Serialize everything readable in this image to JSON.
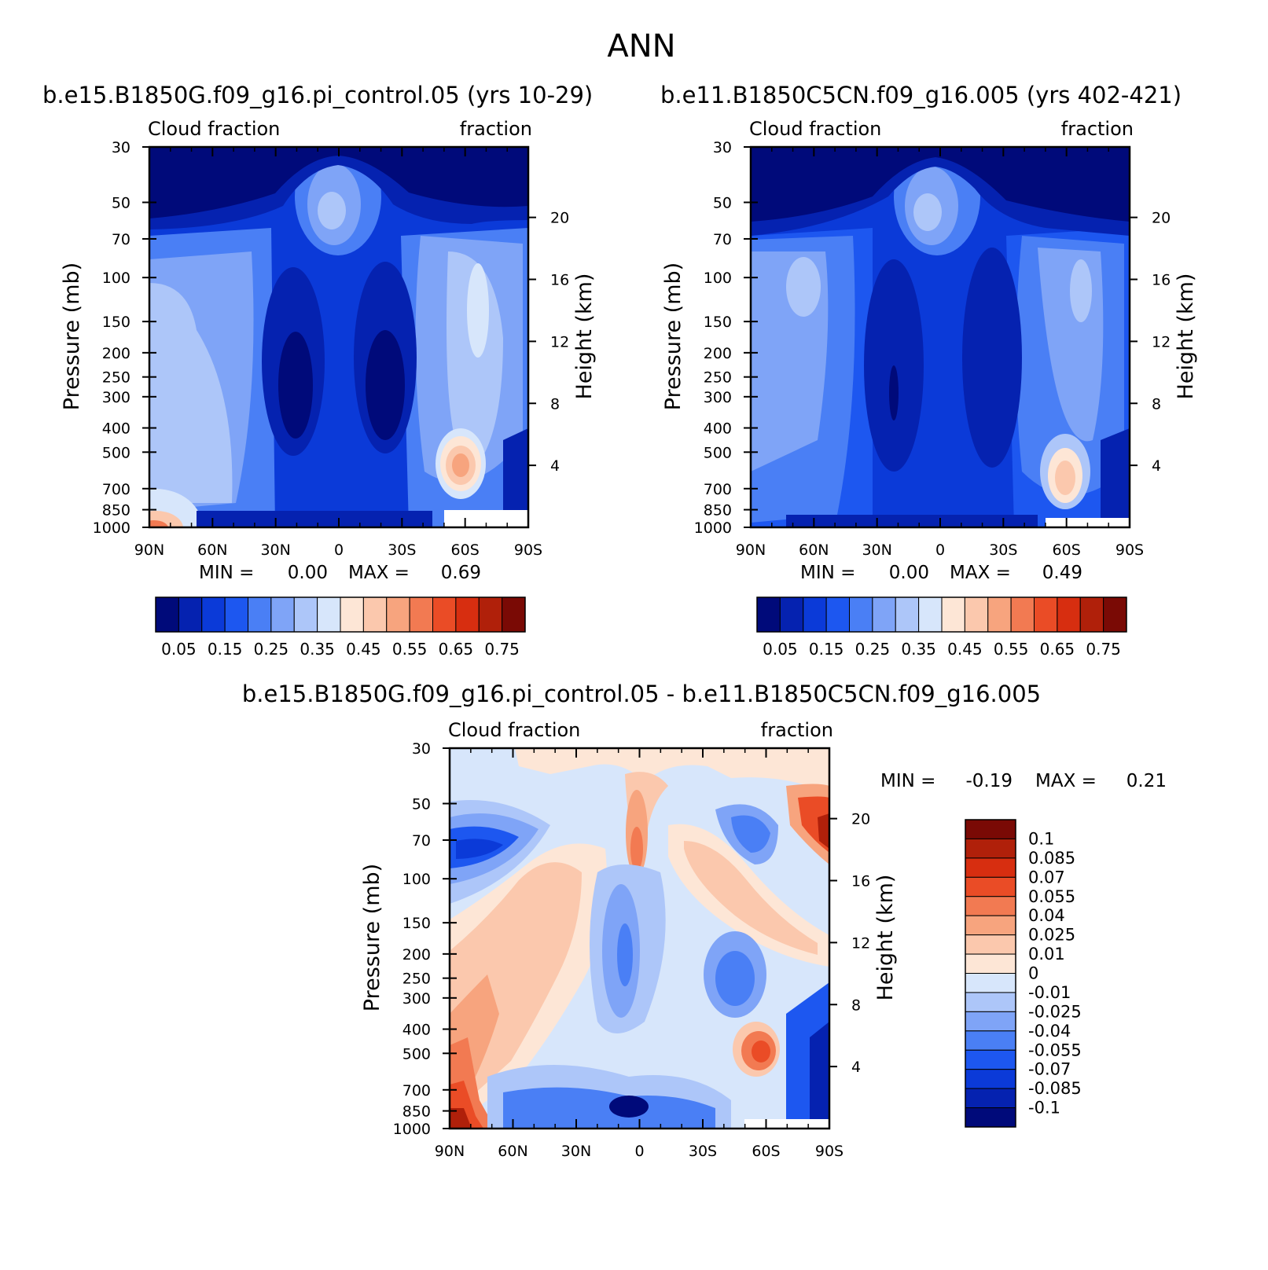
{
  "figure": {
    "title": "ANN"
  },
  "chart_data": [
    {
      "type": "heatmap",
      "title": "b.e15.B1850G.f09_g16.pi_control.05 (yrs 10-29)",
      "subtitle_left": "Cloud fraction",
      "subtitle_right": "fraction",
      "ylabel": "Pressure (mb)",
      "ylabel2": "Height (km)",
      "xticks": [
        "90N",
        "60N",
        "30N",
        "0",
        "30S",
        "60S",
        "90S"
      ],
      "yticks": [
        "30",
        "50",
        "70",
        "100",
        "150",
        "200",
        "250",
        "300",
        "400",
        "500",
        "700",
        "850",
        "1000"
      ],
      "height_ticks": [
        "20",
        "16",
        "12",
        "8",
        "4"
      ],
      "min_label": "MIN =",
      "min": "0.00",
      "max_label": "MAX =",
      "max": "0.69",
      "colorbar_labels": [
        "0.05",
        "0.15",
        "0.25",
        "0.35",
        "0.45",
        "0.55",
        "0.65",
        "0.75"
      ]
    },
    {
      "type": "heatmap",
      "title": "b.e11.B1850C5CN.f09_g16.005 (yrs 402-421)",
      "subtitle_left": "Cloud fraction",
      "subtitle_right": "fraction",
      "ylabel": "Pressure (mb)",
      "ylabel2": "Height (km)",
      "xticks": [
        "90N",
        "60N",
        "30N",
        "0",
        "30S",
        "60S",
        "90S"
      ],
      "yticks": [
        "30",
        "50",
        "70",
        "100",
        "150",
        "200",
        "250",
        "300",
        "400",
        "500",
        "700",
        "850",
        "1000"
      ],
      "height_ticks": [
        "20",
        "16",
        "12",
        "8",
        "4"
      ],
      "min_label": "MIN =",
      "min": "0.00",
      "max_label": "MAX =",
      "max": "0.49",
      "colorbar_labels": [
        "0.05",
        "0.15",
        "0.25",
        "0.35",
        "0.45",
        "0.55",
        "0.65",
        "0.75"
      ]
    },
    {
      "type": "heatmap",
      "title": "b.e15.B1850G.f09_g16.pi_control.05 - b.e11.B1850C5CN.f09_g16.005",
      "subtitle_left": "Cloud fraction",
      "subtitle_right": "fraction",
      "ylabel": "Pressure (mb)",
      "ylabel2": "Height (km)",
      "xticks": [
        "90N",
        "60N",
        "30N",
        "0",
        "30S",
        "60S",
        "90S"
      ],
      "yticks": [
        "30",
        "50",
        "70",
        "100",
        "150",
        "200",
        "250",
        "300",
        "400",
        "500",
        "700",
        "850",
        "1000"
      ],
      "height_ticks": [
        "20",
        "16",
        "12",
        "8",
        "4"
      ],
      "min_label": "MIN =",
      "min": "-0.19",
      "max_label": "MAX =",
      "max": "0.21",
      "colorbar_labels": [
        "0.1",
        "0.085",
        "0.07",
        "0.055",
        "0.04",
        "0.025",
        "0.01",
        "0",
        "-0.01",
        "-0.025",
        "-0.04",
        "-0.055",
        "-0.07",
        "-0.085",
        "-0.1"
      ]
    }
  ],
  "colors": {
    "seq": [
      "#000a7a",
      "#0522b0",
      "#0b3ad8",
      "#1d57f0",
      "#4a7ff5",
      "#7fa4f7",
      "#adc6f9",
      "#d7e6fb",
      "#fde6d6",
      "#fbc8ad",
      "#f7a47e",
      "#f27a52",
      "#ea4c26",
      "#d72e10",
      "#b0200a",
      "#7a0a05"
    ],
    "div": [
      "#7a0a05",
      "#b0200a",
      "#d72e10",
      "#ea4c26",
      "#f27a52",
      "#f7a47e",
      "#fbc8ad",
      "#fde6d6",
      "#d7e6fb",
      "#adc6f9",
      "#7fa4f7",
      "#4a7ff5",
      "#1d57f0",
      "#0b3ad8",
      "#0522b0",
      "#000a7a"
    ]
  }
}
